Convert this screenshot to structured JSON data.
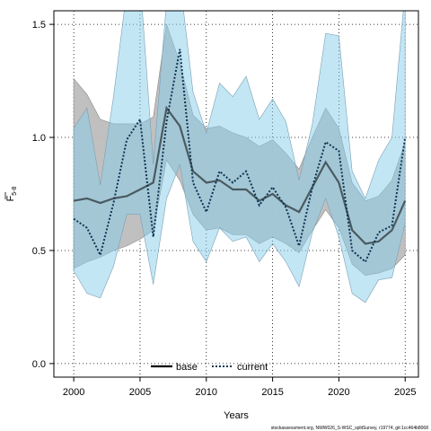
{
  "chart_data": {
    "type": "line",
    "xlabel": "Years",
    "ylabel_main": "F",
    "ylabel_sub": "5-8",
    "xlim": [
      1998.5,
      2026.0
    ],
    "ylim": [
      -0.06,
      1.56
    ],
    "xticks": [
      2000,
      2005,
      2010,
      2015,
      2020,
      2025
    ],
    "yticks": [
      0.0,
      0.5,
      1.0,
      1.5
    ],
    "ytick_labels": [
      "0.0",
      "0.5",
      "1.0",
      "1.5"
    ],
    "grid": true,
    "legend_position": "bottom-center",
    "colors": {
      "base_line": "#000000",
      "base_band": "#bdbdbd",
      "current_line": "#0d3552",
      "current_band": "#87ceeb"
    },
    "x": [
      2000,
      2001,
      2002,
      2003,
      2004,
      2005,
      2006,
      2007,
      2008,
      2009,
      2010,
      2011,
      2012,
      2013,
      2014,
      2015,
      2016,
      2017,
      2018,
      2019,
      2020,
      2021,
      2022,
      2023,
      2024,
      2025
    ],
    "series": [
      {
        "name": "base",
        "style": "solid",
        "values": [
          0.72,
          0.73,
          0.71,
          0.73,
          0.74,
          0.77,
          0.8,
          1.13,
          1.05,
          0.85,
          0.8,
          0.81,
          0.77,
          0.77,
          0.72,
          0.75,
          0.7,
          0.67,
          0.78,
          0.89,
          0.8,
          0.59,
          0.53,
          0.54,
          0.59,
          0.72
        ],
        "lower": [
          0.42,
          0.45,
          0.47,
          0.5,
          0.52,
          0.55,
          0.59,
          0.9,
          0.81,
          0.66,
          0.59,
          0.6,
          0.57,
          0.57,
          0.53,
          0.56,
          0.53,
          0.49,
          0.59,
          0.68,
          0.6,
          0.44,
          0.39,
          0.4,
          0.42,
          0.48
        ],
        "upper": [
          1.26,
          1.19,
          1.08,
          1.06,
          1.06,
          1.06,
          1.09,
          1.5,
          1.33,
          1.1,
          1.04,
          1.05,
          1.02,
          1.0,
          0.96,
          0.99,
          0.93,
          0.86,
          1.0,
          1.13,
          1.04,
          0.8,
          0.72,
          0.74,
          0.81,
          0.98
        ]
      },
      {
        "name": "current",
        "style": "dotted",
        "values": [
          0.64,
          0.6,
          0.48,
          0.71,
          0.99,
          1.08,
          0.56,
          1.07,
          1.39,
          0.8,
          0.67,
          0.85,
          0.8,
          0.85,
          0.7,
          0.78,
          0.69,
          0.52,
          0.78,
          0.98,
          0.94,
          0.5,
          0.45,
          0.58,
          0.61,
          1.0
        ],
        "lower": [
          0.41,
          0.31,
          0.29,
          0.43,
          0.66,
          0.66,
          0.35,
          0.73,
          0.88,
          0.54,
          0.45,
          0.6,
          0.54,
          0.56,
          0.45,
          0.53,
          0.45,
          0.34,
          0.58,
          0.73,
          0.56,
          0.31,
          0.27,
          0.37,
          0.38,
          0.62
        ],
        "upper": [
          1.04,
          1.13,
          0.79,
          1.18,
          1.65,
          1.7,
          0.88,
          1.6,
          1.7,
          1.2,
          1.02,
          1.24,
          1.18,
          1.27,
          1.08,
          1.17,
          1.07,
          0.81,
          1.06,
          1.46,
          1.45,
          0.85,
          0.73,
          0.9,
          1.0,
          1.65
        ]
      }
    ]
  },
  "footer_text": "stockassessment.org, NWW026_S-WSC_splitSurvey, r19774, git:1cc464b8068"
}
